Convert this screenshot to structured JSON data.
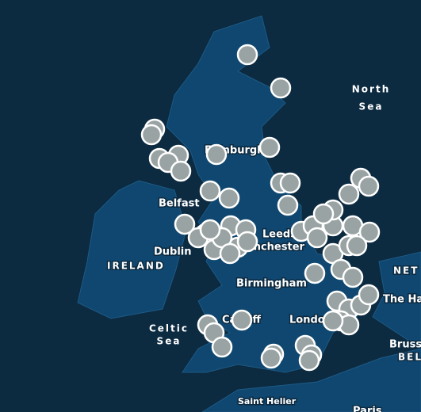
{
  "map": {
    "labels": {
      "north": "North",
      "sea": "Sea",
      "edinburgh": "Edinburgh",
      "belfast": "Belfast",
      "dublin": "Dublin",
      "ireland": "IRELAND",
      "leeds": "Leeds",
      "manchester": "Manchester",
      "birmingham": "Birmingham",
      "cardiff": "Cardiff",
      "london": "London",
      "celtic": "Celtic",
      "celtic_sea": "Sea",
      "the_hague": "The Hag",
      "netherlands": "NET",
      "brussels": "Brusse",
      "belgium": "BEL",
      "saint_helier": "Saint Helier",
      "paris": "Paris"
    }
  }
}
